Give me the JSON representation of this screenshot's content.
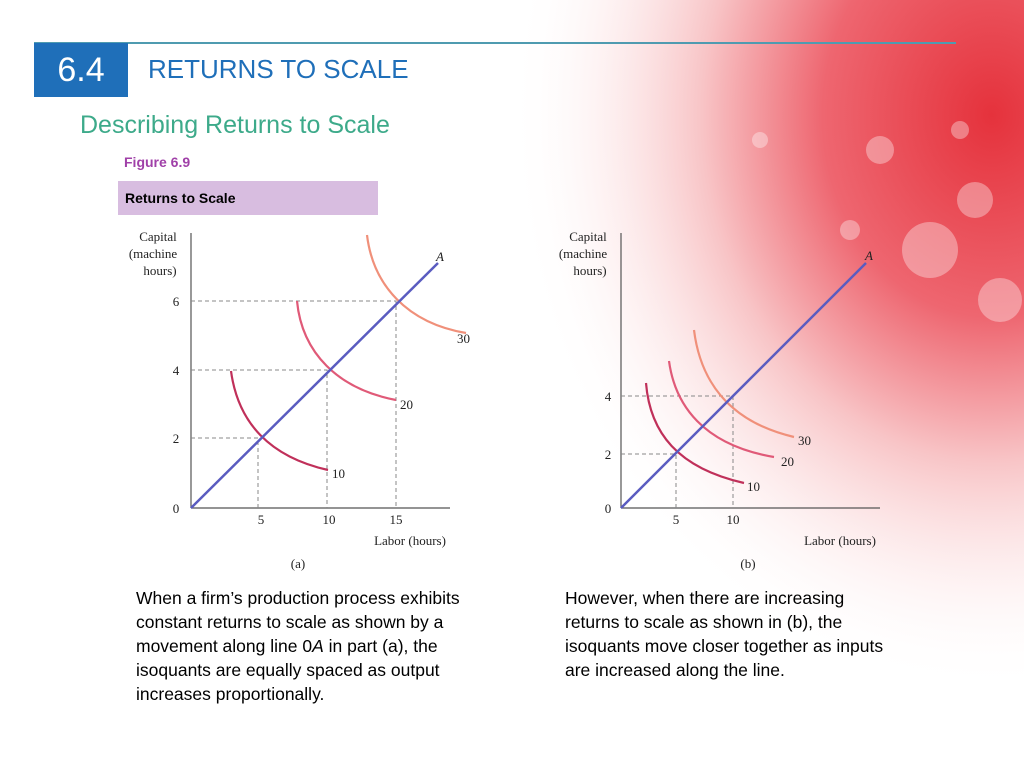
{
  "header": {
    "section_number": "6.4",
    "section_title": "RETURNS TO SCALE",
    "subtitle": "Describing Returns to Scale"
  },
  "figure": {
    "label": "Figure 6.9",
    "title": "Returns to Scale"
  },
  "colors": {
    "section_box": "#1f6fb9",
    "subtitle": "#3daa8a",
    "figure_label": "#a040a8",
    "figure_title_bg": "#d8bde0",
    "ray_line": "#5a5cc0",
    "isoquant_10": "#c0305a",
    "isoquant_20": "#e05a78",
    "isoquant_30": "#f0907a"
  },
  "chart_data": [
    {
      "type": "line",
      "panel": "(a)",
      "ylabel": [
        "Capital",
        "(machine",
        "hours)"
      ],
      "xlabel": "Labor (hours)",
      "y_ticks": [
        "0",
        "2",
        "4",
        "6"
      ],
      "x_ticks": [
        "5",
        "10",
        "15"
      ],
      "ray_label": "A",
      "isoquant_labels": [
        "10",
        "20",
        "30"
      ],
      "ray_points": [
        {
          "labor": 5,
          "capital": 2
        },
        {
          "labor": 10,
          "capital": 4
        },
        {
          "labor": 15,
          "capital": 6
        }
      ]
    },
    {
      "type": "line",
      "panel": "(b)",
      "ylabel": [
        "Capital",
        "(machine",
        "hours)"
      ],
      "xlabel": "Labor (hours)",
      "y_ticks": [
        "0",
        "2",
        "4"
      ],
      "x_ticks": [
        "5",
        "10"
      ],
      "ray_label": "A",
      "isoquant_labels": [
        "10",
        "20",
        "30"
      ],
      "ray_points": [
        {
          "labor": 5,
          "capital": 2
        },
        {
          "labor": 10,
          "capital": 4
        }
      ]
    }
  ],
  "captions": {
    "left_part1": "When a firm’s production process exhibits constant returns to scale as shown by a movement along line 0",
    "left_italic": "A",
    "left_part2": " in part (a), the isoquants are equally spaced as output increases proportionally.",
    "right": "However, when there are increasing returns to scale as shown in (b), the isoquants move closer together as inputs are increased along the line."
  }
}
